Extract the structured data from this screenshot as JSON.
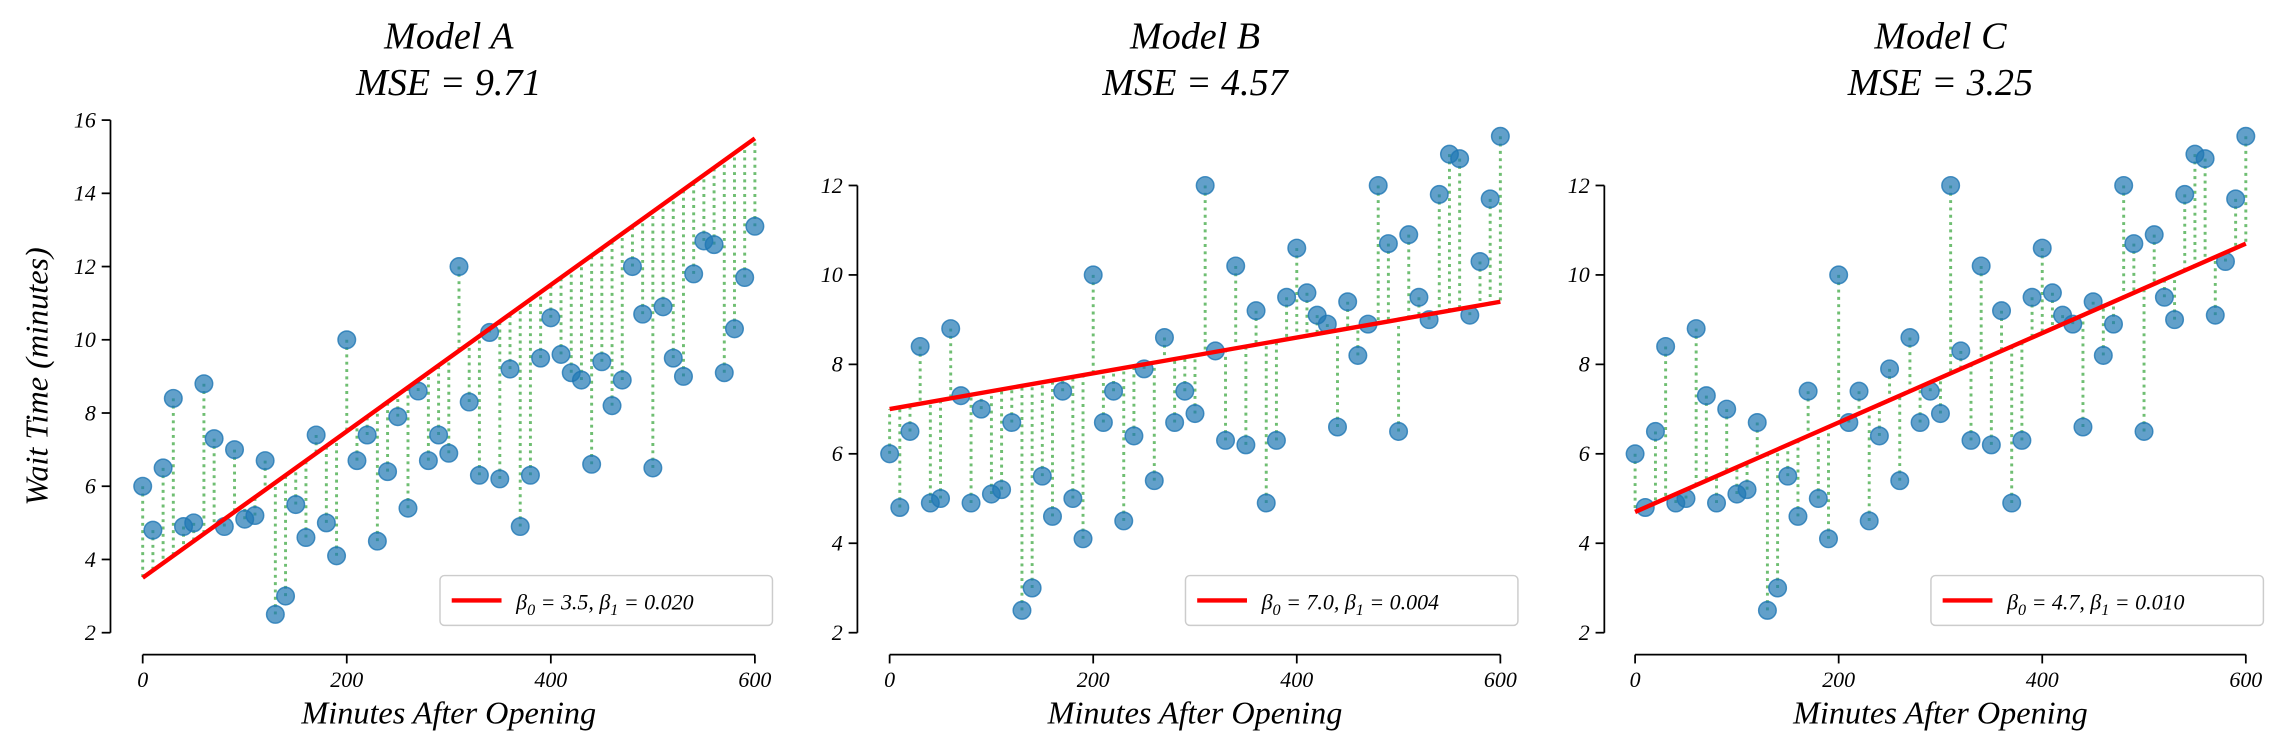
{
  "chart_data": {
    "type": "scatter",
    "shared_xlabel": "Minutes After Opening",
    "ylabel": "Wait Time (minutes)",
    "x": [
      0,
      10,
      20,
      30,
      40,
      50,
      60,
      70,
      80,
      90,
      100,
      110,
      120,
      130,
      140,
      150,
      160,
      170,
      180,
      190,
      200,
      210,
      220,
      230,
      240,
      250,
      260,
      270,
      280,
      290,
      300,
      310,
      320,
      330,
      340,
      350,
      360,
      370,
      380,
      390,
      400,
      410,
      420,
      430,
      440,
      450,
      460,
      470,
      480,
      490,
      500,
      510,
      520,
      530,
      540,
      550,
      560,
      570,
      580,
      590,
      600
    ],
    "y": [
      6.0,
      4.8,
      6.5,
      8.4,
      4.9,
      5.0,
      8.8,
      7.3,
      4.9,
      7.0,
      5.1,
      5.2,
      6.7,
      2.5,
      3.0,
      5.5,
      4.6,
      7.4,
      5.0,
      4.1,
      10.0,
      6.7,
      7.4,
      4.5,
      6.4,
      7.9,
      5.4,
      8.6,
      6.7,
      7.4,
      6.9,
      12.0,
      8.3,
      6.3,
      10.2,
      6.2,
      9.2,
      4.9,
      6.3,
      9.5,
      10.6,
      9.6,
      9.1,
      8.9,
      6.6,
      9.4,
      8.2,
      8.9,
      12.0,
      10.7,
      6.5,
      10.9,
      9.5,
      9.0,
      11.8,
      12.7,
      12.6,
      9.1,
      10.3,
      11.7,
      13.1
    ],
    "panels": [
      {
        "title": "Model A",
        "mse_label": "MSE = 9.71",
        "b0": 3.5,
        "b1": 0.02,
        "legend": {
          "b0_text": " = 3.5, ",
          "b1_text": " = 0.020"
        },
        "ylim": [
          2,
          16
        ],
        "yticks": [
          "2",
          "4",
          "6",
          "8",
          "10",
          "12",
          "14",
          "16"
        ],
        "xticks": [
          "0",
          "200",
          "400",
          "600"
        ],
        "show_ylabel": true
      },
      {
        "title": "Model B",
        "mse_label": "MSE = 4.57",
        "b0": 7.0,
        "b1": 0.004,
        "legend": {
          "b0_text": " = 7.0, ",
          "b1_text": " = 0.004"
        },
        "ylim": [
          2,
          13.2
        ],
        "yticks": [
          "2",
          "4",
          "6",
          "8",
          "10",
          "12"
        ],
        "xticks": [
          "0",
          "200",
          "400",
          "600"
        ],
        "show_ylabel": false
      },
      {
        "title": "Model C",
        "mse_label": "MSE = 3.25",
        "b0": 4.7,
        "b1": 0.01,
        "legend": {
          "b0_text": " = 4.7, ",
          "b1_text": " = 0.010"
        },
        "ylim": [
          2,
          13.2
        ],
        "yticks": [
          "2",
          "4",
          "6",
          "8",
          "10",
          "12"
        ],
        "xticks": [
          "0",
          "200",
          "400",
          "600"
        ],
        "show_ylabel": false
      }
    ],
    "legend_placement": "lower-right",
    "legend_symbols": {
      "b0": "β",
      "b0_sub": "0",
      "b1": "β",
      "b1_sub": "1"
    },
    "colors": {
      "points": "#1f77b4",
      "fit_line": "#ff0000",
      "residuals": "#4caf50"
    }
  }
}
